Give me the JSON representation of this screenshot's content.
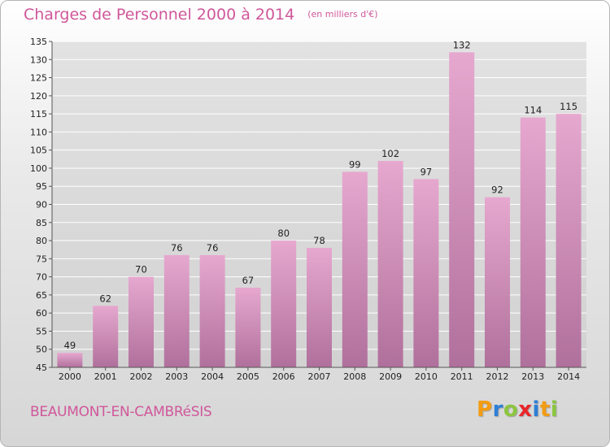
{
  "header": {
    "title": "Charges de Personnel 2000 à 2014",
    "unit": "(en milliers d'€)"
  },
  "footer": {
    "commune": "BEAUMONT-EN-CAMBRéSIS",
    "logo_letters": [
      "P",
      "r",
      "o",
      "x",
      "i",
      "t",
      "i"
    ],
    "logo_colors": [
      "#f39c12",
      "#2e7fd6",
      "#8cc63f",
      "#e8262a",
      "#2e7fd6",
      "#f39c12",
      "#8cc63f"
    ]
  },
  "colors": {
    "accent": "#d0579a",
    "bar_light": "#e6a8cf",
    "bar_dark": "#b0709c",
    "grid": "#ffffff"
  },
  "chart_data": {
    "type": "bar",
    "title": "Charges de Personnel 2000 à 2014",
    "subtitle": "(en milliers d'€)",
    "categories": [
      "2000",
      "2001",
      "2002",
      "2003",
      "2004",
      "2005",
      "2006",
      "2007",
      "2008",
      "2009",
      "2010",
      "2011",
      "2012",
      "2013",
      "2014"
    ],
    "values": [
      49,
      62,
      70,
      76,
      76,
      67,
      80,
      78,
      99,
      102,
      97,
      132,
      92,
      114,
      115
    ],
    "ylim": [
      45,
      135
    ],
    "yticks": [
      45,
      50,
      55,
      60,
      65,
      70,
      75,
      80,
      85,
      90,
      95,
      100,
      105,
      110,
      115,
      120,
      125,
      130,
      135
    ],
    "grid": true,
    "xlabel": "",
    "ylabel": ""
  }
}
